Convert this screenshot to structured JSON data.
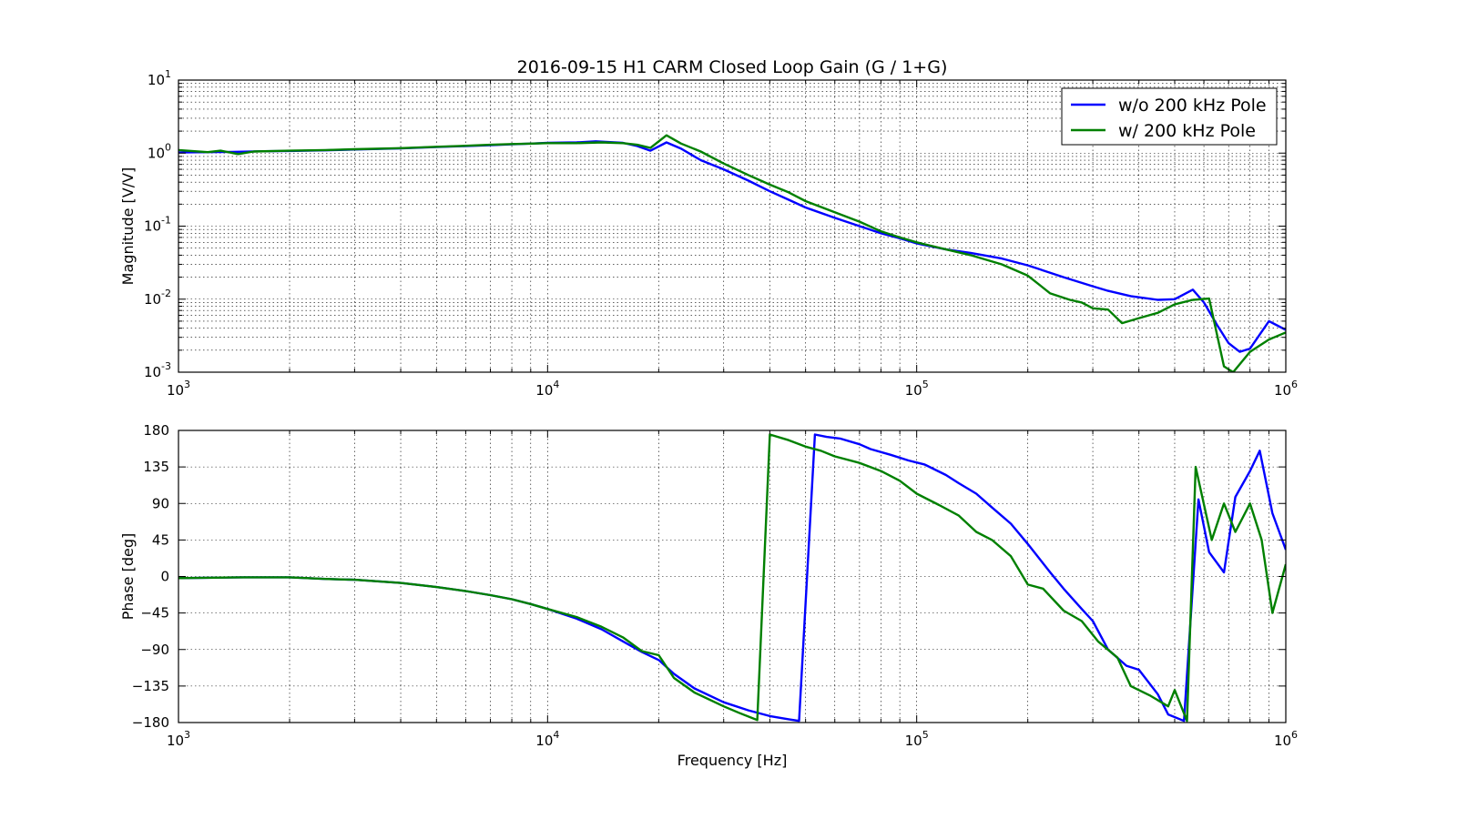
{
  "chart_data": [
    {
      "type": "line",
      "title": "2016-09-15 H1 CARM Closed Loop Gain (G / 1+G)",
      "xlabel": "",
      "ylabel": "Magnitude [V/V]",
      "xscale": "log",
      "yscale": "log",
      "xlim": [
        1000,
        1000000
      ],
      "ylim": [
        0.001,
        10
      ],
      "x_ticks": [
        {
          "base": "10",
          "exp": "3"
        },
        {
          "base": "10",
          "exp": "4"
        },
        {
          "base": "10",
          "exp": "5"
        },
        {
          "base": "10",
          "exp": "6"
        }
      ],
      "y_ticks": [
        {
          "base": "10",
          "exp": "-3"
        },
        {
          "base": "10",
          "exp": "-2"
        },
        {
          "base": "10",
          "exp": "-1"
        },
        {
          "base": "10",
          "exp": "0"
        },
        {
          "base": "10",
          "exp": "1"
        }
      ],
      "grid": true,
      "legend": "top-right",
      "series": [
        {
          "name": "w/o 200 kHz Pole",
          "color": "#0000ff",
          "points": [
            [
              1000,
              1.02
            ],
            [
              1200,
              1.03
            ],
            [
              1400,
              1.04
            ],
            [
              1700,
              1.06
            ],
            [
              2000,
              1.07
            ],
            [
              2500,
              1.09
            ],
            [
              3000,
              1.12
            ],
            [
              4000,
              1.16
            ],
            [
              5000,
              1.21
            ],
            [
              6000,
              1.25
            ],
            [
              7000,
              1.28
            ],
            [
              8000,
              1.32
            ],
            [
              9000,
              1.35
            ],
            [
              10000,
              1.38
            ],
            [
              12000,
              1.4
            ],
            [
              13500,
              1.45
            ],
            [
              16000,
              1.38
            ],
            [
              17500,
              1.25
            ],
            [
              19000,
              1.08
            ],
            [
              21000,
              1.4
            ],
            [
              23000,
              1.15
            ],
            [
              26000,
              0.8
            ],
            [
              30000,
              0.6
            ],
            [
              35000,
              0.42
            ],
            [
              40000,
              0.3
            ],
            [
              45000,
              0.23
            ],
            [
              50000,
              0.18
            ],
            [
              60000,
              0.13
            ],
            [
              70000,
              0.1
            ],
            [
              80000,
              0.08
            ],
            [
              90000,
              0.068
            ],
            [
              100000,
              0.058
            ],
            [
              120000,
              0.048
            ],
            [
              140000,
              0.043
            ],
            [
              170000,
              0.036
            ],
            [
              200000,
              0.029
            ],
            [
              250000,
              0.02
            ],
            [
              300000,
              0.015
            ],
            [
              330000,
              0.013
            ],
            [
              380000,
              0.011
            ],
            [
              450000,
              0.0098
            ],
            [
              500000,
              0.01
            ],
            [
              560000,
              0.0135
            ],
            [
              600000,
              0.009
            ],
            [
              650000,
              0.0045
            ],
            [
              700000,
              0.0025
            ],
            [
              750000,
              0.0019
            ],
            [
              800000,
              0.0021
            ],
            [
              900000,
              0.005
            ],
            [
              1000000,
              0.0038
            ]
          ]
        },
        {
          "name": "w/ 200 kHz Pole",
          "color": "#008000",
          "points": [
            [
              1000,
              1.1
            ],
            [
              1200,
              1.03
            ],
            [
              1300,
              1.08
            ],
            [
              1450,
              0.97
            ],
            [
              1600,
              1.05
            ],
            [
              2000,
              1.08
            ],
            [
              2500,
              1.1
            ],
            [
              3000,
              1.13
            ],
            [
              4000,
              1.17
            ],
            [
              5000,
              1.22
            ],
            [
              6000,
              1.26
            ],
            [
              7000,
              1.3
            ],
            [
              8000,
              1.33
            ],
            [
              9000,
              1.35
            ],
            [
              10000,
              1.37
            ],
            [
              12000,
              1.37
            ],
            [
              14000,
              1.4
            ],
            [
              16000,
              1.37
            ],
            [
              17500,
              1.3
            ],
            [
              19000,
              1.18
            ],
            [
              21000,
              1.75
            ],
            [
              23000,
              1.35
            ],
            [
              26000,
              1.05
            ],
            [
              30000,
              0.72
            ],
            [
              35000,
              0.5
            ],
            [
              40000,
              0.37
            ],
            [
              45000,
              0.29
            ],
            [
              50000,
              0.22
            ],
            [
              60000,
              0.155
            ],
            [
              70000,
              0.115
            ],
            [
              80000,
              0.085
            ],
            [
              90000,
              0.07
            ],
            [
              100000,
              0.06
            ],
            [
              120000,
              0.048
            ],
            [
              140000,
              0.04
            ],
            [
              170000,
              0.03
            ],
            [
              200000,
              0.021
            ],
            [
              230000,
              0.012
            ],
            [
              260000,
              0.0098
            ],
            [
              280000,
              0.009
            ],
            [
              300000,
              0.0075
            ],
            [
              330000,
              0.0072
            ],
            [
              360000,
              0.0047
            ],
            [
              400000,
              0.0055
            ],
            [
              450000,
              0.0065
            ],
            [
              500000,
              0.0085
            ],
            [
              560000,
              0.0098
            ],
            [
              620000,
              0.0102
            ],
            [
              680000,
              0.0012
            ],
            [
              720000,
              0.001
            ],
            [
              800000,
              0.0019
            ],
            [
              900000,
              0.0028
            ],
            [
              1000000,
              0.0035
            ]
          ]
        }
      ]
    },
    {
      "type": "line",
      "title": "",
      "xlabel": "Frequency [Hz]",
      "ylabel": "Phase [deg]",
      "xscale": "log",
      "yscale": "linear",
      "xlim": [
        1000,
        1000000
      ],
      "ylim": [
        -180,
        180
      ],
      "x_ticks": [
        {
          "base": "10",
          "exp": "3"
        },
        {
          "base": "10",
          "exp": "4"
        },
        {
          "base": "10",
          "exp": "5"
        },
        {
          "base": "10",
          "exp": "6"
        }
      ],
      "y_ticks": [
        "180",
        "135",
        "90",
        "45",
        "0",
        "−45",
        "−90",
        "−135",
        "−180"
      ],
      "y_tick_values": [
        180,
        135,
        90,
        45,
        0,
        -45,
        -90,
        -135,
        -180
      ],
      "grid": true,
      "series": [
        {
          "name": "w/o 200 kHz Pole",
          "color": "#0000ff",
          "points": [
            [
              1000,
              -2
            ],
            [
              1500,
              -1
            ],
            [
              2000,
              -1
            ],
            [
              2500,
              -3
            ],
            [
              3000,
              -4
            ],
            [
              4000,
              -8
            ],
            [
              5000,
              -13
            ],
            [
              6000,
              -18
            ],
            [
              7000,
              -23
            ],
            [
              8000,
              -28
            ],
            [
              9000,
              -34
            ],
            [
              10000,
              -40
            ],
            [
              12000,
              -52
            ],
            [
              14000,
              -65
            ],
            [
              16000,
              -80
            ],
            [
              18000,
              -93
            ],
            [
              20000,
              -103
            ],
            [
              22000,
              -120
            ],
            [
              25000,
              -138
            ],
            [
              30000,
              -155
            ],
            [
              35000,
              -165
            ],
            [
              40000,
              -172
            ],
            [
              45000,
              -176
            ],
            [
              48000,
              -178
            ],
            [
              53000,
              175
            ],
            [
              57000,
              172
            ],
            [
              62000,
              170
            ],
            [
              70000,
              163
            ],
            [
              75000,
              157
            ],
            [
              85000,
              150
            ],
            [
              95000,
              143
            ],
            [
              105000,
              138
            ],
            [
              120000,
              125
            ],
            [
              130000,
              115
            ],
            [
              145000,
              102
            ],
            [
              160000,
              85
            ],
            [
              180000,
              65
            ],
            [
              200000,
              40
            ],
            [
              230000,
              5
            ],
            [
              250000,
              -15
            ],
            [
              280000,
              -40
            ],
            [
              300000,
              -55
            ],
            [
              330000,
              -90
            ],
            [
              370000,
              -110
            ],
            [
              400000,
              -115
            ],
            [
              450000,
              -145
            ],
            [
              480000,
              -170
            ],
            [
              530000,
              -178
            ],
            [
              580000,
              95
            ],
            [
              620000,
              30
            ],
            [
              680000,
              5
            ],
            [
              730000,
              98
            ],
            [
              800000,
              130
            ],
            [
              850000,
              155
            ],
            [
              920000,
              78
            ],
            [
              1000000,
              33
            ]
          ]
        },
        {
          "name": "w/ 200 kHz Pole",
          "color": "#008000",
          "points": [
            [
              1000,
              -2
            ],
            [
              1500,
              -1
            ],
            [
              2000,
              -1
            ],
            [
              2500,
              -3
            ],
            [
              3000,
              -4
            ],
            [
              4000,
              -8
            ],
            [
              5000,
              -13
            ],
            [
              6000,
              -18
            ],
            [
              7000,
              -23
            ],
            [
              8000,
              -28
            ],
            [
              9000,
              -34
            ],
            [
              10000,
              -40
            ],
            [
              12000,
              -50
            ],
            [
              14000,
              -62
            ],
            [
              16000,
              -75
            ],
            [
              18000,
              -92
            ],
            [
              20000,
              -97
            ],
            [
              22000,
              -125
            ],
            [
              25000,
              -143
            ],
            [
              30000,
              -160
            ],
            [
              33000,
              -168
            ],
            [
              37000,
              -177
            ],
            [
              40000,
              175
            ],
            [
              45000,
              168
            ],
            [
              50000,
              160
            ],
            [
              55000,
              155
            ],
            [
              60000,
              148
            ],
            [
              70000,
              140
            ],
            [
              80000,
              130
            ],
            [
              90000,
              118
            ],
            [
              100000,
              102
            ],
            [
              115000,
              88
            ],
            [
              130000,
              75
            ],
            [
              145000,
              55
            ],
            [
              160000,
              45
            ],
            [
              180000,
              25
            ],
            [
              200000,
              -10
            ],
            [
              220000,
              -15
            ],
            [
              250000,
              -42
            ],
            [
              280000,
              -55
            ],
            [
              310000,
              -80
            ],
            [
              350000,
              -100
            ],
            [
              380000,
              -135
            ],
            [
              430000,
              -147
            ],
            [
              480000,
              -160
            ],
            [
              500000,
              -140
            ],
            [
              540000,
              -178
            ],
            [
              570000,
              135
            ],
            [
              630000,
              45
            ],
            [
              680000,
              90
            ],
            [
              730000,
              55
            ],
            [
              800000,
              90
            ],
            [
              860000,
              45
            ],
            [
              920000,
              -45
            ],
            [
              1000000,
              15
            ]
          ]
        }
      ]
    }
  ]
}
